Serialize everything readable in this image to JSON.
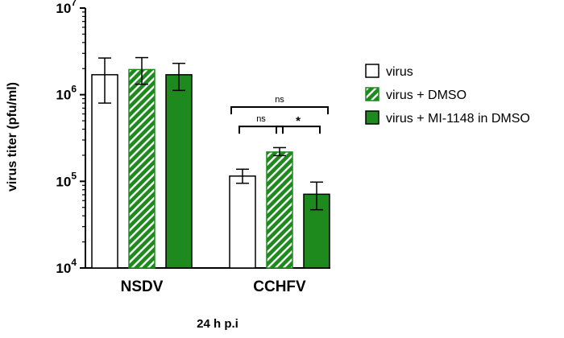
{
  "chart_data": {
    "type": "bar",
    "ylabel": "virus titer (pfu/ml)",
    "xlabel": "24 h p.i",
    "ylim": [
      10000,
      10000000
    ],
    "yscale": "log",
    "y_ticks": [
      {
        "base": "10",
        "exp": "4",
        "value": 10000
      },
      {
        "base": "10",
        "exp": "5",
        "value": 100000
      },
      {
        "base": "10",
        "exp": "6",
        "value": 1000000
      },
      {
        "base": "10",
        "exp": "7",
        "value": 10000000
      }
    ],
    "categories": [
      "NSDV",
      "CCHFV"
    ],
    "series": [
      {
        "name": "virus",
        "style": "hollow",
        "color": "#ffffff",
        "stroke": "#000000",
        "values": [
          1700000,
          115000
        ],
        "err_low": [
          800000,
          95000
        ],
        "err_high": [
          2650000,
          138000
        ]
      },
      {
        "name": "virus + DMSO",
        "style": "hatched",
        "color": "#1e8a1e",
        "stroke": "#1e8a1e",
        "values": [
          1950000,
          218000
        ],
        "err_low": [
          1320000,
          198000
        ],
        "err_high": [
          2680000,
          245000
        ]
      },
      {
        "name": "virus + MI-1148 in DMSO",
        "style": "solid",
        "color": "#1e8a1e",
        "stroke": "#000000",
        "values": [
          1700000,
          71000
        ],
        "err_low": [
          1120000,
          47000
        ],
        "err_high": [
          2300000,
          98000
        ]
      }
    ],
    "significance": [
      {
        "label": "ns",
        "group": 0,
        "from": 0,
        "to": 2,
        "level": 22000000
      },
      {
        "label": "ns",
        "group": 1,
        "from": 0,
        "to": 2,
        "level": 720000
      },
      {
        "label": "ns",
        "group": 1,
        "from": 0,
        "to": 1,
        "level": 430000
      },
      {
        "label": "*",
        "group": 1,
        "from": 1,
        "to": 2,
        "level": 430000
      }
    ],
    "legend_position": "right",
    "grid": false
  }
}
